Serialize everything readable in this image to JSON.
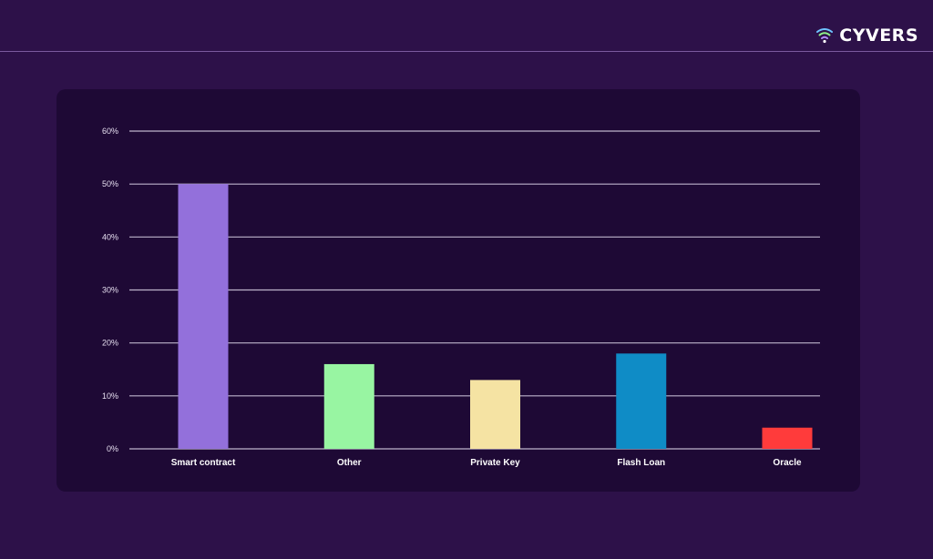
{
  "brand": {
    "name": "CYVERS",
    "icon": "wifi-shield-icon",
    "icon_colors": [
      "#6ec3ff",
      "#8ef08a",
      "#b48cff"
    ]
  },
  "colors": {
    "background": "#2d1149",
    "card": "#1e0935",
    "grid": "#d9d2e6"
  },
  "chart_data": {
    "type": "bar",
    "categories": [
      "Smart contract",
      "Other",
      "Private Key",
      "Flash Loan",
      "Oracle"
    ],
    "values": [
      50,
      16,
      13,
      18,
      4
    ],
    "colors": [
      "#9370db",
      "#98f5a2",
      "#f5e3a3",
      "#0f8cc6",
      "#ff3b3b"
    ],
    "ylim": [
      0,
      60
    ],
    "yticks": [
      0,
      10,
      20,
      30,
      40,
      50,
      60
    ],
    "ytick_labels": [
      "0%",
      "10%",
      "20%",
      "30%",
      "40%",
      "50%",
      "60%"
    ],
    "title": "",
    "xlabel": "",
    "ylabel": "",
    "grid": true,
    "legend": "none"
  }
}
